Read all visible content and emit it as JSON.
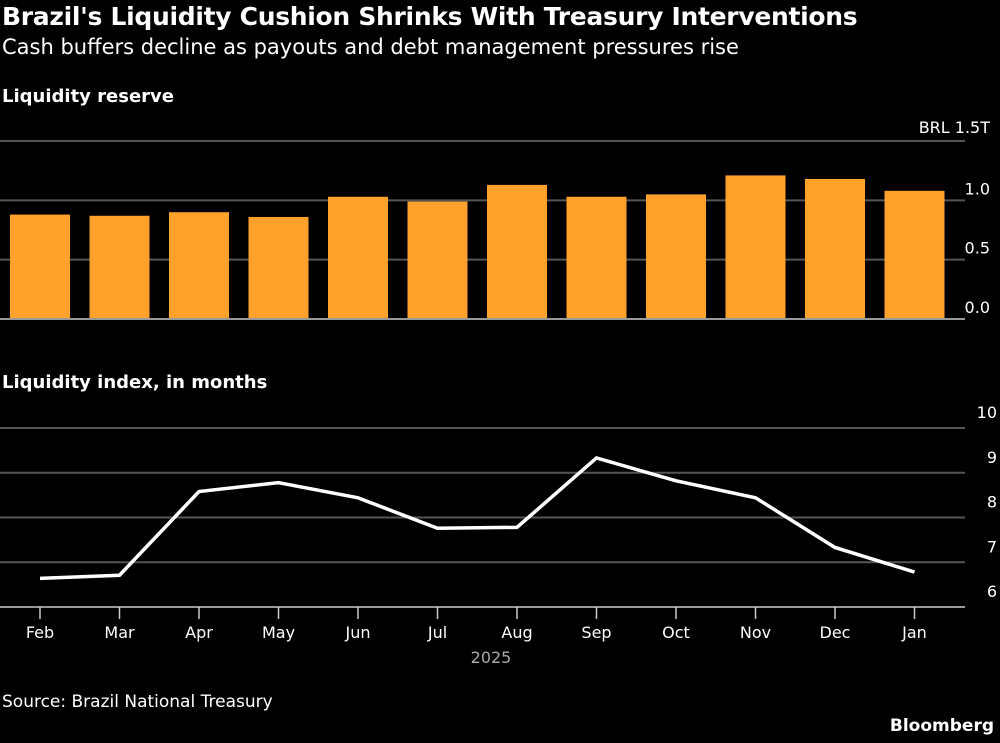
{
  "title": "Brazil's Liquidity Cushion Shrinks With Treasury Interventions",
  "subtitle": "Cash buffers decline as payouts and debt management pressures rise",
  "source": "Source: Brazil National Treasury",
  "brand": "Bloomberg",
  "colors": {
    "bar": "#ffa12b",
    "line": "#ffffff",
    "grid": "#555555",
    "background": "#000000"
  },
  "chart_data": [
    {
      "type": "bar",
      "title": "Liquidity reserve",
      "unit_label": "BRL 1.5T",
      "categories": [
        "Feb",
        "Mar",
        "Apr",
        "May",
        "Jun",
        "Jul",
        "Aug",
        "Sep",
        "Oct",
        "Nov",
        "Dec",
        "Jan"
      ],
      "values": [
        0.88,
        0.87,
        0.9,
        0.86,
        1.03,
        0.99,
        1.13,
        1.03,
        1.05,
        1.21,
        1.18,
        1.08
      ],
      "ylim": [
        0,
        1.5
      ],
      "yticks": [
        "0.0",
        "0.5",
        "1.0"
      ],
      "grid": true
    },
    {
      "type": "line",
      "title": "Liquidity index, in months",
      "categories": [
        "Feb",
        "Mar",
        "Apr",
        "May",
        "Jun",
        "Jul",
        "Aug",
        "Sep",
        "Oct",
        "Nov",
        "Dec",
        "Jan"
      ],
      "values": [
        6.64,
        6.71,
        8.58,
        8.78,
        8.44,
        7.76,
        7.78,
        9.33,
        8.82,
        8.44,
        7.33,
        6.78
      ],
      "ylim": [
        6,
        10
      ],
      "yticks": [
        "6",
        "7",
        "8",
        "9",
        "10"
      ],
      "xlabel": "2025",
      "grid": true
    }
  ]
}
